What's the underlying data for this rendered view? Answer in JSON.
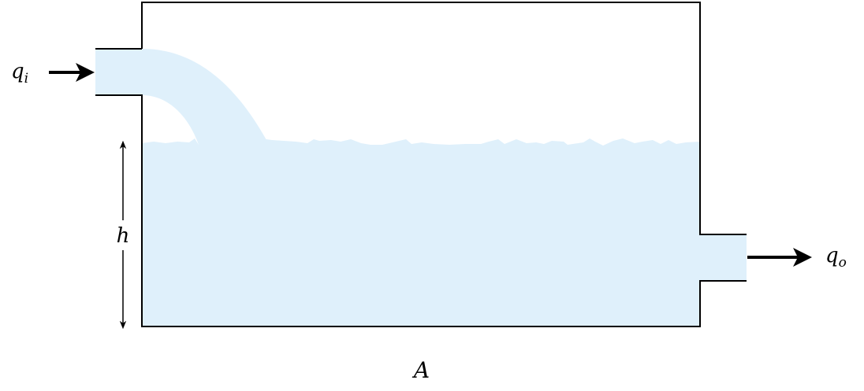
{
  "colors": {
    "water": "#dff0fb",
    "outline": "#000000",
    "arrow": "#000000",
    "background": "#ffffff"
  },
  "labels": {
    "inflow_main": "q",
    "inflow_sub": "i",
    "outflow_main": "q",
    "outflow_sub": "o",
    "height": "h",
    "area": "A"
  }
}
